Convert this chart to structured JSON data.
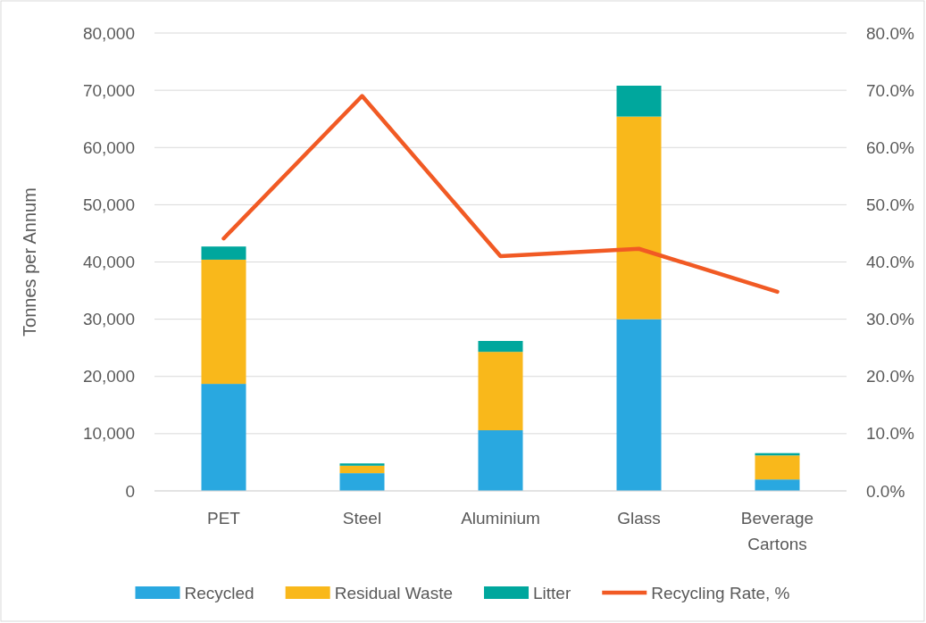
{
  "chart_data": {
    "type": "bar",
    "stacked": true,
    "ylabel": "Tonnes per Annum",
    "categories": [
      "PET",
      "Steel",
      "Aluminium",
      "Glass",
      "Beverage Cartons"
    ],
    "series": [
      {
        "name": "Recycled",
        "color": "#29a8e0",
        "values": [
          18700,
          3100,
          10600,
          30000,
          2000
        ]
      },
      {
        "name": "Residual Waste",
        "color": "#f9b81b",
        "values": [
          21700,
          1300,
          13700,
          35400,
          4200
        ]
      },
      {
        "name": "Litter",
        "color": "#00a79d",
        "values": [
          2300,
          400,
          1900,
          5400,
          400
        ]
      },
      {
        "name": "Recycling Rate, %",
        "type": "line",
        "axis": "y2",
        "color": "#f15a24",
        "marker": "none",
        "line_style": "solid",
        "values": [
          44.1,
          69.0,
          41.0,
          42.3,
          34.8
        ]
      }
    ],
    "ylim": [
      0,
      80000
    ],
    "yticks": [
      {
        "value": 0,
        "label": "0"
      },
      {
        "value": 10000,
        "label": "10,000"
      },
      {
        "value": 20000,
        "label": "20,000"
      },
      {
        "value": 30000,
        "label": "30,000"
      },
      {
        "value": 40000,
        "label": "40,000"
      },
      {
        "value": 50000,
        "label": "50,000"
      },
      {
        "value": 60000,
        "label": "60,000"
      },
      {
        "value": 70000,
        "label": "70,000"
      },
      {
        "value": 80000,
        "label": "80,000"
      }
    ],
    "y2lim": [
      0,
      80
    ],
    "y2ticks": [
      {
        "value": 0,
        "label": "0.0%"
      },
      {
        "value": 10,
        "label": "10.0%"
      },
      {
        "value": 20,
        "label": "20.0%"
      },
      {
        "value": 30,
        "label": "30.0%"
      },
      {
        "value": 40,
        "label": "40.0%"
      },
      {
        "value": 50,
        "label": "50.0%"
      },
      {
        "value": 60,
        "label": "60.0%"
      },
      {
        "value": 70,
        "label": "70.0%"
      },
      {
        "value": 80,
        "label": "80.0%"
      }
    ],
    "grid": "y",
    "legend": "bottom"
  }
}
